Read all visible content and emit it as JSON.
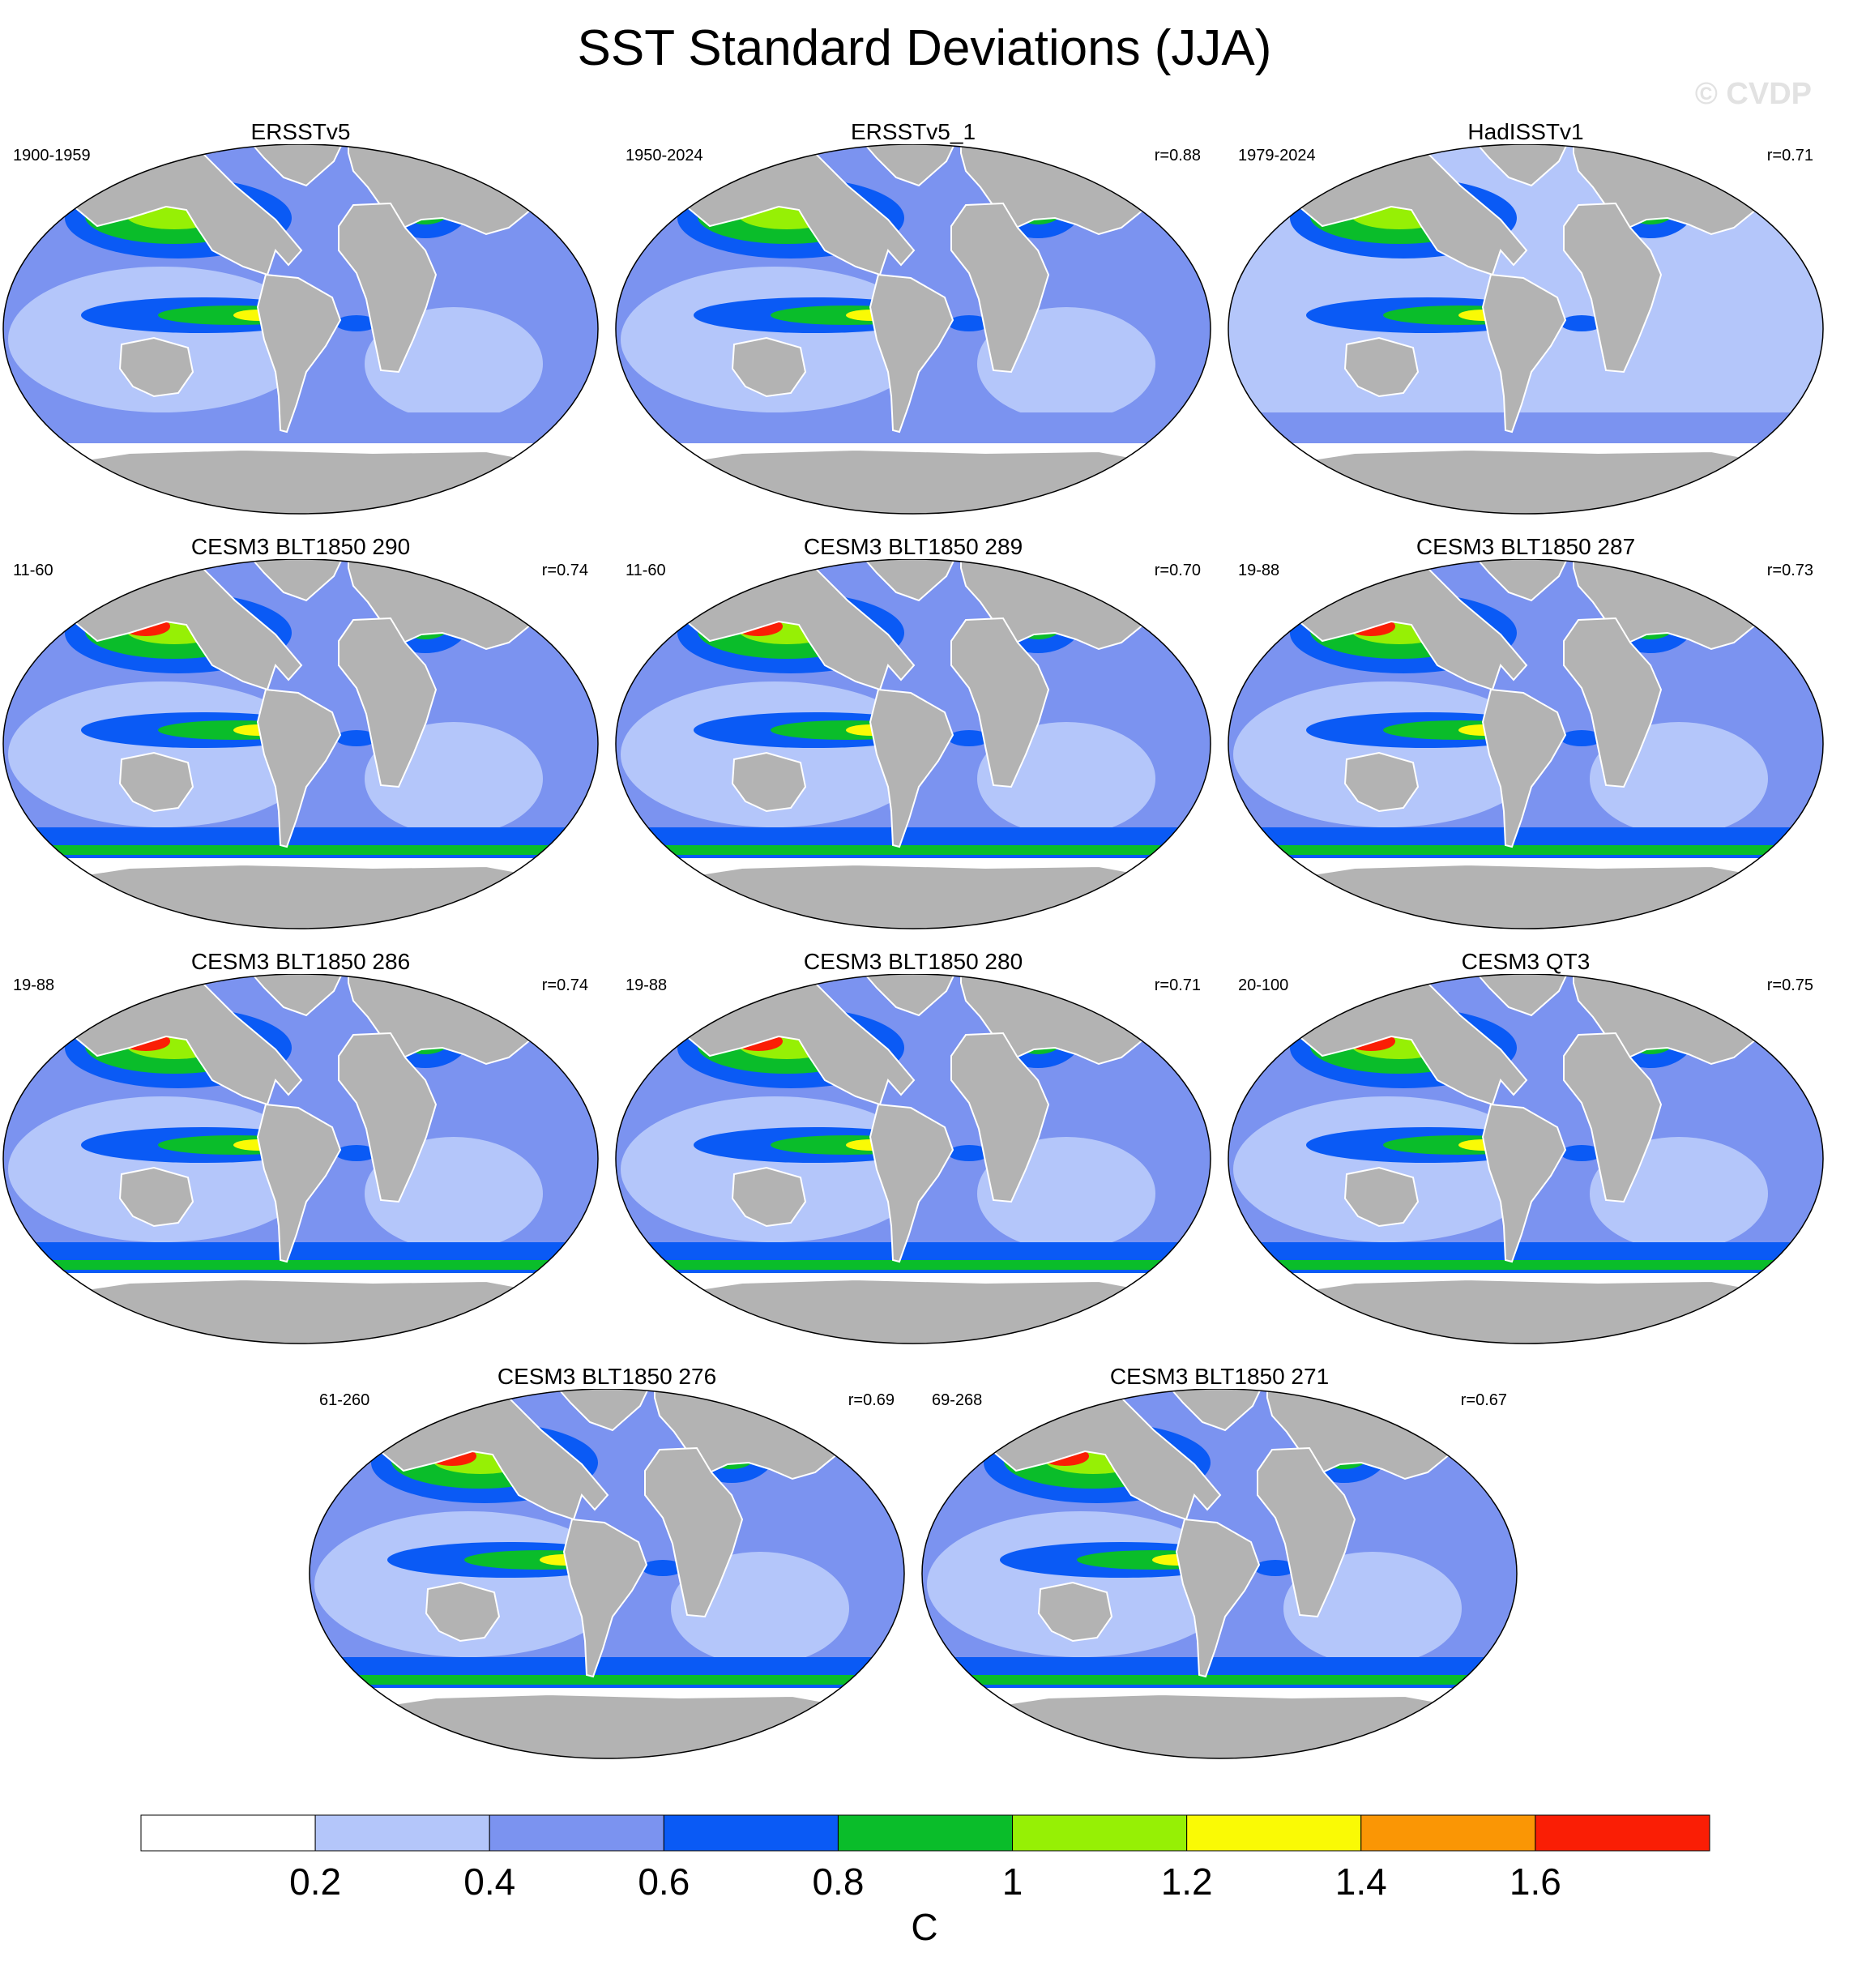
{
  "title": "SST Standard Deviations (JJA)",
  "watermark": "© CVDP",
  "panels": [
    {
      "title": "ERSSTv5",
      "period": "1900-1959",
      "corr": ""
    },
    {
      "title": "ERSSTv5_1",
      "period": "1950-2024",
      "corr": "r=0.88"
    },
    {
      "title": "HadISSTv1",
      "period": "1979-2024",
      "corr": "r=0.71"
    },
    {
      "title": "CESM3 BLT1850 290",
      "period": "11-60",
      "corr": "r=0.74"
    },
    {
      "title": "CESM3 BLT1850 289",
      "period": "11-60",
      "corr": "r=0.70"
    },
    {
      "title": "CESM3 BLT1850 287",
      "period": "19-88",
      "corr": "r=0.73"
    },
    {
      "title": "CESM3 BLT1850 286",
      "period": "19-88",
      "corr": "r=0.74"
    },
    {
      "title": "CESM3 BLT1850 280",
      "period": "19-88",
      "corr": "r=0.71"
    },
    {
      "title": "CESM3 QT3",
      "period": "20-100",
      "corr": "r=0.75"
    },
    {
      "title": "CESM3 BLT1850 276",
      "period": "61-260",
      "corr": "r=0.69"
    },
    {
      "title": "CESM3 BLT1850 271",
      "period": "69-268",
      "corr": "r=0.67"
    }
  ],
  "colorbar": {
    "colors": [
      "#ffffff",
      "#b4c6fa",
      "#7b93f0",
      "#0a5af5",
      "#0abd2a",
      "#96f005",
      "#fafa05",
      "#fa9605",
      "#fa1e05"
    ],
    "tick_labels": [
      "0.2",
      "0.4",
      "0.6",
      "0.8",
      "1",
      "1.2",
      "1.4",
      "1.6"
    ],
    "unit": "C"
  }
}
